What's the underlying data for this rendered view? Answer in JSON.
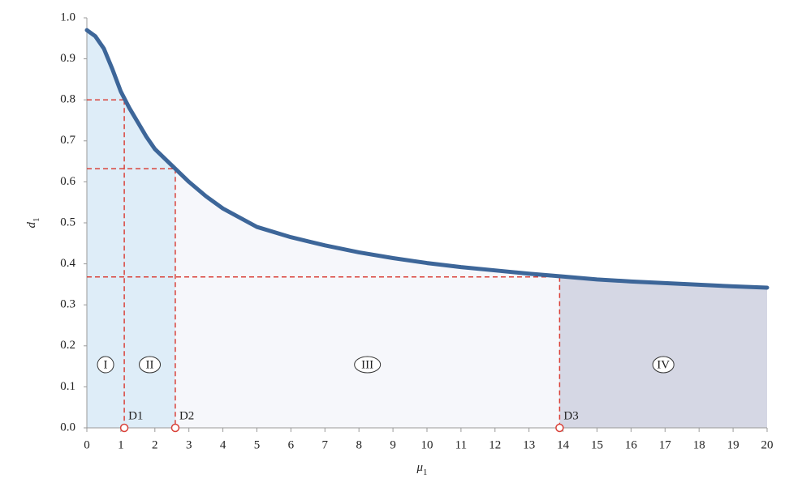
{
  "chart_data": {
    "type": "line",
    "x": [
      0,
      0.25,
      0.5,
      0.75,
      1,
      1.25,
      1.5,
      1.75,
      2,
      2.5,
      3,
      3.5,
      4,
      5,
      6,
      7,
      8,
      9,
      10,
      11,
      12,
      13,
      14,
      15,
      16,
      17,
      18,
      19,
      20
    ],
    "values": [
      0.97,
      0.955,
      0.925,
      0.875,
      0.82,
      0.78,
      0.745,
      0.71,
      0.68,
      0.64,
      0.6,
      0.565,
      0.535,
      0.49,
      0.465,
      0.445,
      0.428,
      0.414,
      0.402,
      0.392,
      0.384,
      0.376,
      0.369,
      0.362,
      0.357,
      0.353,
      0.349,
      0.345,
      0.342
    ],
    "color": "#3d6699",
    "xlim": [
      0,
      20
    ],
    "xticks": [
      0,
      1,
      2,
      3,
      4,
      5,
      6,
      7,
      8,
      9,
      10,
      11,
      12,
      13,
      14,
      15,
      16,
      17,
      18,
      19,
      20
    ],
    "ylim": [
      0,
      1
    ],
    "yticks": [
      {
        "value": 0,
        "label": "0.0"
      },
      0.1,
      0.2,
      0.3,
      0.4,
      0.5,
      0.6,
      0.7,
      0.8,
      0.9,
      {
        "value": 1,
        "label": "1.0"
      }
    ],
    "x_label": {
      "symbol": "μ",
      "subscript": "1"
    },
    "y_label": {
      "symbol": "d",
      "subscript": "1"
    },
    "points": [
      {
        "label": "D1",
        "x": 1.1,
        "y": 0.8
      },
      {
        "label": "D2",
        "x": 2.6,
        "y": 0.632
      },
      {
        "label": "D3",
        "x": 13.9,
        "y": 0.368
      }
    ],
    "point_color": "#d9423a",
    "regions": [
      {
        "label": "I",
        "color": "#deedf8"
      },
      {
        "label": "II",
        "color": "#deedf8"
      },
      {
        "label": "III",
        "color": "#f6f7fb"
      },
      {
        "label": "IV",
        "color": "#d5d7e4"
      }
    ]
  }
}
